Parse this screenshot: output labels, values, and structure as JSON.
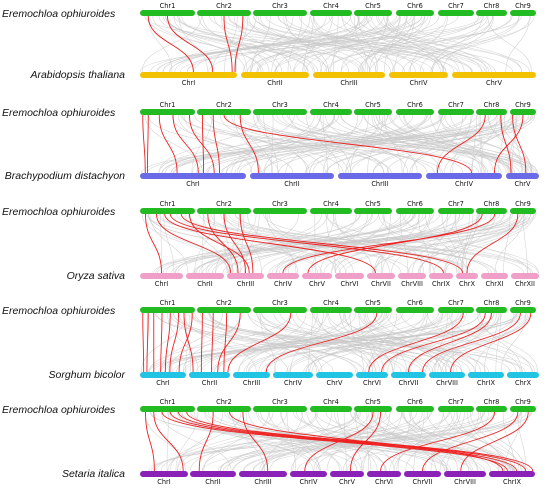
{
  "reference": {
    "species": "Eremochloa ophiuroides",
    "chromosomes": [
      "Chr1",
      "Chr2",
      "Chr3",
      "Chr4",
      "Chr5",
      "Chr6",
      "Chr7",
      "Chr8",
      "Chr9"
    ],
    "color": "#22bb22"
  },
  "panels": [
    {
      "id": "arabidopsis",
      "species": "Arabidopsis thaliana",
      "chromosomes": [
        "ChrI",
        "ChrII",
        "ChrIII",
        "ChrIV",
        "ChrV"
      ],
      "color": "#f2c200",
      "links": [
        [
          1,
          0.15,
          1,
          0.55
        ],
        [
          1,
          0.5,
          1,
          0.75
        ],
        [
          2,
          0.5,
          1,
          0.95
        ],
        [
          2,
          0.85,
          1,
          0.98
        ]
      ]
    },
    {
      "id": "brachypodium",
      "species": "Brachypodium distachyon",
      "chromosomes": [
        "ChrI",
        "ChrII",
        "ChrIII",
        "ChrIV",
        "ChrV"
      ],
      "color": "#6a6ae6",
      "links": [
        [
          1,
          0.05,
          1,
          0.05
        ],
        [
          1,
          0.15,
          1,
          0.07
        ],
        [
          1,
          0.35,
          1,
          0.35
        ],
        [
          1,
          0.6,
          1,
          0.55
        ],
        [
          1,
          0.9,
          1,
          0.7
        ],
        [
          2,
          0.1,
          1,
          0.6
        ],
        [
          2,
          0.3,
          1,
          0.75
        ],
        [
          2,
          0.5,
          4,
          0.6
        ],
        [
          2,
          0.8,
          2,
          0.1
        ],
        [
          8,
          0.3,
          4,
          0.15
        ],
        [
          8,
          0.8,
          5,
          0.15
        ],
        [
          9,
          0.1,
          5,
          0.6
        ],
        [
          9,
          0.5,
          4,
          0.9
        ]
      ]
    },
    {
      "id": "oryza",
      "species": "Oryza sativa",
      "chromosomes": [
        "ChrI",
        "ChrII",
        "ChrIII",
        "ChrIV",
        "ChrV",
        "ChrVI",
        "ChrVII",
        "ChrVIII",
        "ChrIX",
        "ChrX",
        "ChrXI",
        "ChrXII"
      ],
      "color": "#f0a0c8",
      "links": [
        [
          1,
          0.1,
          1,
          0.5
        ],
        [
          1,
          0.3,
          3,
          0.1
        ],
        [
          1,
          0.45,
          7,
          0.3
        ],
        [
          1,
          0.55,
          9,
          0.6
        ],
        [
          1,
          0.75,
          10,
          0.3
        ],
        [
          1,
          0.9,
          3,
          0.6
        ],
        [
          2,
          0.2,
          3,
          0.3
        ],
        [
          2,
          0.5,
          3,
          0.5
        ],
        [
          2,
          0.8,
          3,
          0.7
        ],
        [
          8,
          0.2,
          5,
          0.2
        ],
        [
          8,
          0.6,
          4,
          0.5
        ],
        [
          9,
          0.3,
          10,
          0.5
        ]
      ]
    },
    {
      "id": "sorghum",
      "species": "Sorghum bicolor",
      "chromosomes": [
        "ChrI",
        "ChrII",
        "ChrIII",
        "ChrIV",
        "ChrV",
        "ChrVI",
        "ChrVII",
        "ChrVIII",
        "ChrIX",
        "ChrX"
      ],
      "color": "#22c4e4",
      "links": [
        [
          1,
          0.05,
          1,
          0.08
        ],
        [
          1,
          0.15,
          1,
          0.15
        ],
        [
          1,
          0.25,
          1,
          0.3
        ],
        [
          1,
          0.4,
          1,
          0.45
        ],
        [
          1,
          0.55,
          1,
          0.55
        ],
        [
          1,
          0.7,
          1,
          0.65
        ],
        [
          1,
          0.8,
          2,
          0.1
        ],
        [
          1,
          0.95,
          1,
          0.85
        ],
        [
          2,
          0.1,
          2,
          0.3
        ],
        [
          2,
          0.3,
          2,
          0.55
        ],
        [
          2,
          0.55,
          2,
          0.85
        ],
        [
          2,
          0.8,
          2,
          0.7
        ],
        [
          3,
          0.7,
          2,
          0.95
        ],
        [
          5,
          0.6,
          3,
          0.9
        ],
        [
          7,
          0.7,
          6,
          0.4
        ],
        [
          8,
          0.3,
          6,
          0.8
        ],
        [
          8,
          0.5,
          7,
          0.5
        ],
        [
          9,
          0.4,
          7,
          0.9
        ],
        [
          9,
          0.8,
          8,
          0.6
        ]
      ]
    },
    {
      "id": "setaria",
      "species": "Setaria italica",
      "chromosomes": [
        "ChrI",
        "ChrII",
        "ChrIII",
        "ChrIV",
        "ChrV",
        "ChrVI",
        "ChrVII",
        "ChrVIII",
        "ChrIX"
      ],
      "color": "#8a22b8",
      "links": [
        [
          1,
          0.1,
          1,
          0.3
        ],
        [
          1,
          0.25,
          1,
          0.9
        ],
        [
          1,
          0.4,
          9,
          0.4
        ],
        [
          1,
          0.55,
          9,
          0.6
        ],
        [
          1,
          0.7,
          9,
          0.8
        ],
        [
          1,
          0.85,
          9,
          0.95
        ],
        [
          2,
          0.3,
          2,
          0.2
        ],
        [
          2,
          0.6,
          9,
          0.3
        ],
        [
          2,
          0.85,
          3,
          0.6
        ],
        [
          5,
          0.5,
          4,
          0.4
        ],
        [
          5,
          0.7,
          5,
          0.6
        ],
        [
          8,
          0.6,
          6,
          0.4
        ],
        [
          9,
          0.3,
          7,
          0.5
        ],
        [
          9,
          0.7,
          8,
          0.4
        ]
      ]
    }
  ]
}
